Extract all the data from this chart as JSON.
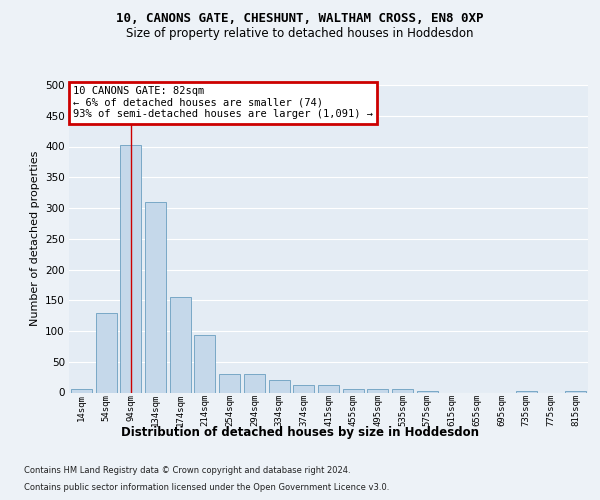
{
  "title_line1": "10, CANONS GATE, CHESHUNT, WALTHAM CROSS, EN8 0XP",
  "title_line2": "Size of property relative to detached houses in Hoddesdon",
  "xlabel": "Distribution of detached houses by size in Hoddesdon",
  "ylabel": "Number of detached properties",
  "categories": [
    "14sqm",
    "54sqm",
    "94sqm",
    "134sqm",
    "174sqm",
    "214sqm",
    "254sqm",
    "294sqm",
    "334sqm",
    "374sqm",
    "415sqm",
    "455sqm",
    "495sqm",
    "535sqm",
    "575sqm",
    "615sqm",
    "655sqm",
    "695sqm",
    "735sqm",
    "775sqm",
    "815sqm"
  ],
  "values": [
    5,
    130,
    403,
    310,
    155,
    93,
    30,
    30,
    20,
    12,
    12,
    5,
    5,
    6,
    2,
    0,
    0,
    0,
    3,
    0,
    3
  ],
  "bar_color": "#c5d8ea",
  "bar_edge_color": "#6a9fc0",
  "vline_x": 2.0,
  "vline_color": "#cc0000",
  "annotation_text": "10 CANONS GATE: 82sqm\n← 6% of detached houses are smaller (74)\n93% of semi-detached houses are larger (1,091) →",
  "annotation_box_facecolor": "#ffffff",
  "annotation_box_edgecolor": "#cc0000",
  "ylim": [
    0,
    500
  ],
  "yticks": [
    0,
    50,
    100,
    150,
    200,
    250,
    300,
    350,
    400,
    450,
    500
  ],
  "footnote1": "Contains HM Land Registry data © Crown copyright and database right 2024.",
  "footnote2": "Contains public sector information licensed under the Open Government Licence v3.0.",
  "fig_facecolor": "#edf2f7",
  "plot_facecolor": "#e4ecf4",
  "grid_color": "#ffffff",
  "title_fontsize": 9,
  "subtitle_fontsize": 8.5,
  "ylabel_fontsize": 8,
  "xlabel_fontsize": 8.5,
  "tick_fontsize": 7.5,
  "xtick_fontsize": 6.5,
  "footnote_fontsize": 6.0,
  "ann_fontsize": 7.5
}
